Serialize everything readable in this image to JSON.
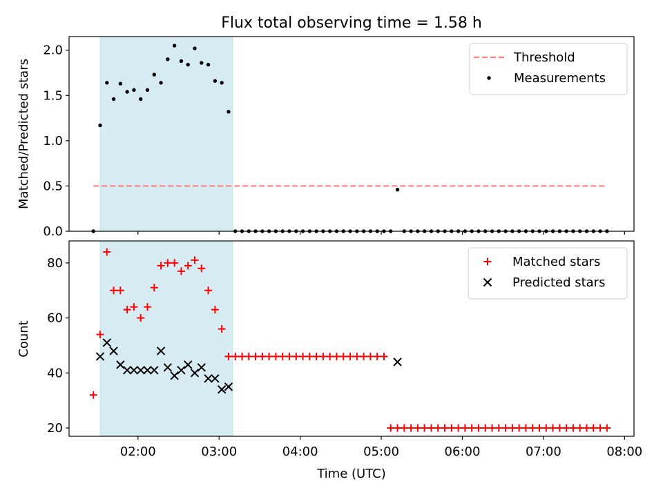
{
  "figure": {
    "title": "Flux total observing time = 1.58 h",
    "xlabel": "Time (UTC)"
  },
  "chart_data": [
    {
      "type": "scatter",
      "ylabel": "Matched/Predicted stars",
      "ylim": [
        0,
        2.15
      ],
      "yticks": [
        0.0,
        0.5,
        1.0,
        1.5,
        2.0
      ],
      "ytick_labels": [
        "0.0",
        "0.5",
        "1.0",
        "1.5",
        "2.0"
      ],
      "shaded_span": {
        "start": "01:32",
        "end": "03:10",
        "color": "#add8e6"
      },
      "threshold": {
        "name": "Threshold",
        "value": 0.5,
        "x_start": "01:27",
        "x_end": "07:47",
        "color": "#ff7f7f"
      },
      "series": [
        {
          "name": "Measurements",
          "color": "#000000",
          "x": [
            "01:27",
            "01:32",
            "01:37",
            "01:42",
            "01:47",
            "01:52",
            "01:57",
            "02:02",
            "02:07",
            "02:12",
            "02:17",
            "02:22",
            "02:27",
            "02:32",
            "02:37",
            "02:42",
            "02:47",
            "02:52",
            "02:57",
            "03:02",
            "03:07",
            "03:12",
            "03:17",
            "03:22",
            "03:27",
            "03:32",
            "03:37",
            "03:42",
            "03:47",
            "03:52",
            "03:57",
            "04:02",
            "04:07",
            "04:12",
            "04:17",
            "04:22",
            "04:27",
            "04:32",
            "04:37",
            "04:42",
            "04:47",
            "04:52",
            "04:57",
            "05:02",
            "05:07",
            "05:12",
            "05:17",
            "05:22",
            "05:27",
            "05:32",
            "05:37",
            "05:42",
            "05:47",
            "05:52",
            "05:57",
            "06:02",
            "06:07",
            "06:12",
            "06:17",
            "06:22",
            "06:27",
            "06:32",
            "06:37",
            "06:42",
            "06:47",
            "06:52",
            "06:57",
            "07:02",
            "07:07",
            "07:12",
            "07:17",
            "07:22",
            "07:27",
            "07:32",
            "07:37",
            "07:42",
            "07:47"
          ],
          "y": [
            0.0,
            1.17,
            1.64,
            1.46,
            1.63,
            1.54,
            1.56,
            1.46,
            1.56,
            1.73,
            1.64,
            1.9,
            2.05,
            1.88,
            1.84,
            2.02,
            1.86,
            1.84,
            1.66,
            1.64,
            1.32,
            0.0,
            0.0,
            0.0,
            0.0,
            0.0,
            0.0,
            0.0,
            0.0,
            0.0,
            0.0,
            0.0,
            0.0,
            0.0,
            0.0,
            0.0,
            0.0,
            0.0,
            0.0,
            0.0,
            0.0,
            0.0,
            0.0,
            0.0,
            0.0,
            0.46,
            0.0,
            0.0,
            0.0,
            0.0,
            0.0,
            0.0,
            0.0,
            0.0,
            0.0,
            0.0,
            0.0,
            0.0,
            0.0,
            0.0,
            0.0,
            0.0,
            0.0,
            0.0,
            0.0,
            0.0,
            0.0,
            0.0,
            0.0,
            0.0,
            0.0,
            0.0,
            0.0,
            0.0,
            0.0,
            0.0,
            0.0
          ]
        }
      ],
      "legend": {
        "location": "top-right",
        "entries": [
          "Threshold",
          "Measurements"
        ]
      }
    },
    {
      "type": "scatter",
      "ylabel": "Count",
      "ylim": [
        17,
        88
      ],
      "yticks": [
        20,
        40,
        60,
        80
      ],
      "ytick_labels": [
        "20",
        "40",
        "60",
        "80"
      ],
      "xticks": [
        "02:00",
        "03:00",
        "04:00",
        "05:00",
        "06:00",
        "07:00",
        "08:00"
      ],
      "xlim": [
        "01:09",
        "08:07"
      ],
      "shaded_span": {
        "start": "01:32",
        "end": "03:10",
        "color": "#add8e6"
      },
      "series": [
        {
          "name": "Matched stars",
          "color": "#ff0000",
          "marker": "plus",
          "x": [
            "01:27",
            "01:32",
            "01:37",
            "01:42",
            "01:47",
            "01:52",
            "01:57",
            "02:02",
            "02:07",
            "02:12",
            "02:17",
            "02:22",
            "02:27",
            "02:32",
            "02:37",
            "02:42",
            "02:47",
            "02:52",
            "02:57",
            "03:02",
            "03:07",
            "03:12",
            "03:17",
            "03:22",
            "03:27",
            "03:32",
            "03:37",
            "03:42",
            "03:47",
            "03:52",
            "03:57",
            "04:02",
            "04:07",
            "04:12",
            "04:17",
            "04:22",
            "04:27",
            "04:32",
            "04:37",
            "04:42",
            "04:47",
            "04:52",
            "04:57",
            "05:02",
            "05:07",
            "05:12",
            "05:17",
            "05:22",
            "05:27",
            "05:32",
            "05:37",
            "05:42",
            "05:47",
            "05:52",
            "05:57",
            "06:02",
            "06:07",
            "06:12",
            "06:17",
            "06:22",
            "06:27",
            "06:32",
            "06:37",
            "06:42",
            "06:47",
            "06:52",
            "06:57",
            "07:02",
            "07:07",
            "07:12",
            "07:17",
            "07:22",
            "07:27",
            "07:32",
            "07:37",
            "07:42",
            "07:47"
          ],
          "y": [
            32,
            54,
            84,
            70,
            70,
            63,
            64,
            60,
            64,
            71,
            79,
            80,
            80,
            77,
            79,
            81,
            78,
            70,
            63,
            56,
            46,
            46,
            46,
            46,
            46,
            46,
            46,
            46,
            46,
            46,
            46,
            46,
            46,
            46,
            46,
            46,
            46,
            46,
            46,
            46,
            46,
            46,
            46,
            46,
            20,
            20,
            20,
            20,
            20,
            20,
            20,
            20,
            20,
            20,
            20,
            20,
            20,
            20,
            20,
            20,
            20,
            20,
            20,
            20,
            20,
            20,
            20,
            20,
            20,
            20,
            20,
            20,
            20,
            20,
            20,
            20,
            20
          ]
        },
        {
          "name": "Predicted stars",
          "color": "#000000",
          "marker": "x",
          "x": [
            "01:32",
            "01:37",
            "01:42",
            "01:47",
            "01:52",
            "01:57",
            "02:02",
            "02:07",
            "02:12",
            "02:17",
            "02:22",
            "02:27",
            "02:32",
            "02:37",
            "02:42",
            "02:47",
            "02:52",
            "02:57",
            "03:02",
            "03:07",
            "05:12"
          ],
          "y": [
            46,
            51,
            48,
            43,
            41,
            41,
            41,
            41,
            41,
            48,
            42,
            39,
            41,
            43,
            40,
            42,
            38,
            38,
            34,
            35,
            44
          ]
        }
      ],
      "legend": {
        "location": "top-right",
        "entries": [
          "Matched stars",
          "Predicted stars"
        ]
      }
    }
  ]
}
